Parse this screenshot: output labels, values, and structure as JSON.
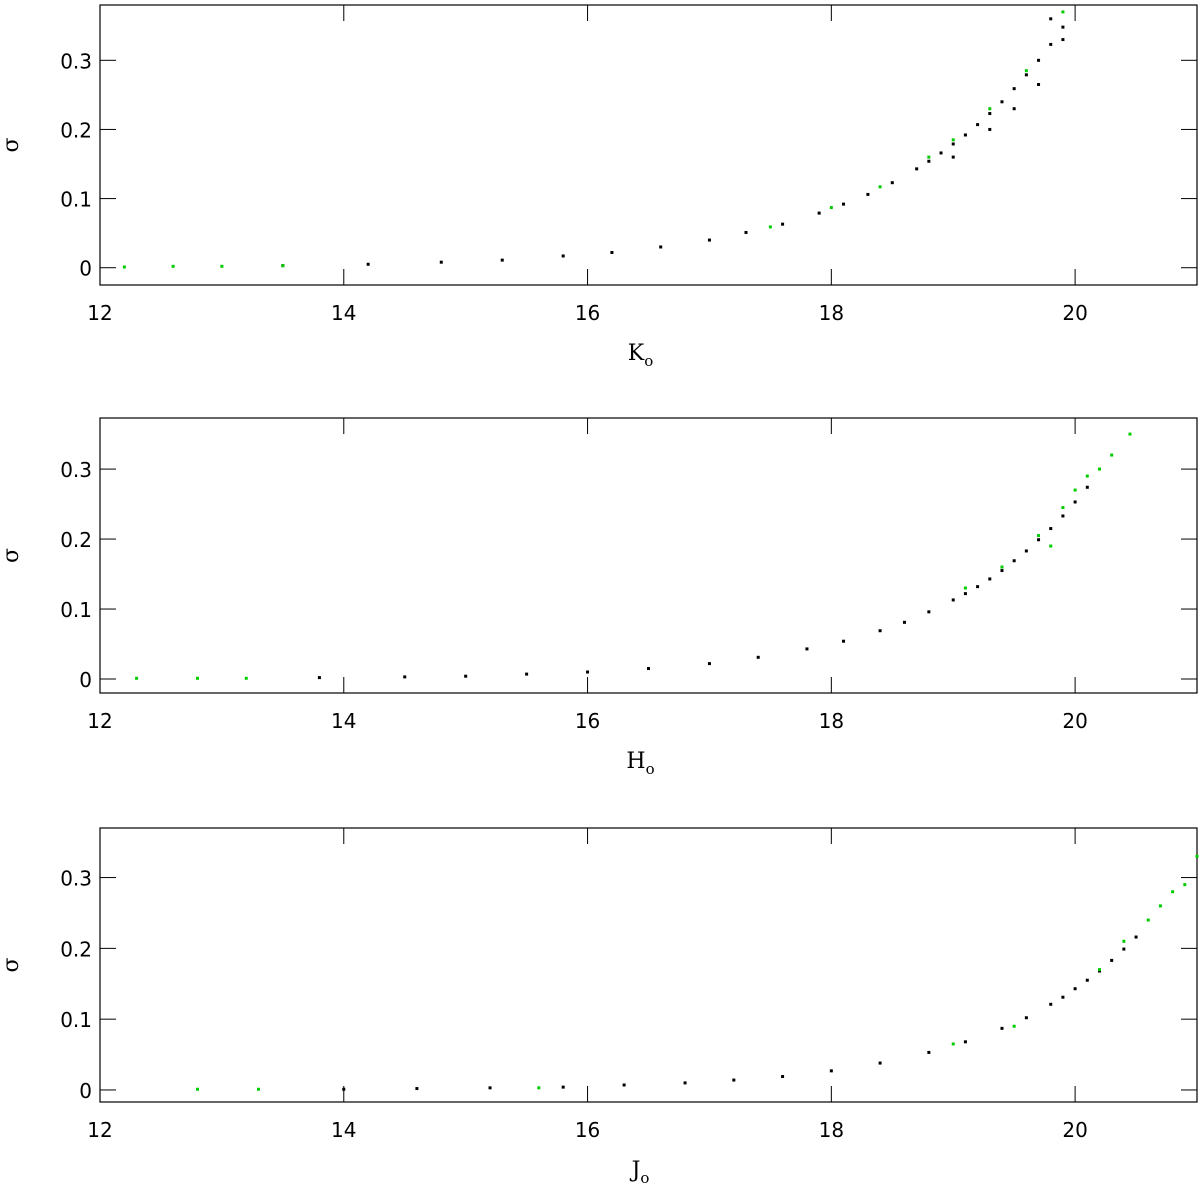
{
  "chart_data": [
    {
      "type": "scatter",
      "xlabel": "K",
      "xlabel_sub": "o",
      "ylabel": "σ",
      "xlim": [
        12,
        21
      ],
      "ylim": [
        -0.025,
        0.38
      ],
      "xticks": [
        12,
        14,
        16,
        18,
        20
      ],
      "yticks": [
        0,
        0.1,
        0.2,
        0.3
      ],
      "series": [
        {
          "color": "#000000",
          "x": [
            13.5,
            14.2,
            14.8,
            15.3,
            15.8,
            16.2,
            16.6,
            17.0,
            17.3,
            17.6,
            17.9,
            18.1,
            18.3,
            18.5,
            18.7,
            18.8,
            18.9,
            19.0,
            19.1,
            19.2,
            19.3,
            19.4,
            19.5,
            19.6,
            19.7,
            19.8,
            19.9,
            19.0,
            19.3,
            19.5,
            19.7,
            19.8,
            19.9
          ],
          "values": [
            0.003,
            0.005,
            0.008,
            0.011,
            0.017,
            0.022,
            0.03,
            0.04,
            0.051,
            0.063,
            0.079,
            0.092,
            0.106,
            0.123,
            0.143,
            0.154,
            0.166,
            0.179,
            0.192,
            0.207,
            0.223,
            0.24,
            0.259,
            0.279,
            0.3,
            0.323,
            0.348,
            0.16,
            0.2,
            0.23,
            0.265,
            0.36,
            0.33
          ]
        },
        {
          "color": "#00cc00",
          "x": [
            12.2,
            12.6,
            13.0,
            13.5,
            17.5,
            18.0,
            18.4,
            18.8,
            19.0,
            19.3,
            19.6,
            19.9
          ],
          "values": [
            0.001,
            0.002,
            0.002,
            0.003,
            0.059,
            0.087,
            0.117,
            0.16,
            0.185,
            0.23,
            0.285,
            0.37
          ]
        }
      ]
    },
    {
      "type": "scatter",
      "xlabel": "H",
      "xlabel_sub": "o",
      "ylabel": "σ",
      "xlim": [
        12,
        21
      ],
      "ylim": [
        -0.02,
        0.373
      ],
      "xticks": [
        12,
        14,
        16,
        18,
        20
      ],
      "yticks": [
        0,
        0.1,
        0.2,
        0.3
      ],
      "series": [
        {
          "color": "#000000",
          "x": [
            13.8,
            14.5,
            15.0,
            15.5,
            16.0,
            16.5,
            17.0,
            17.4,
            17.8,
            18.1,
            18.4,
            18.6,
            18.8,
            19.0,
            19.1,
            19.2,
            19.3,
            19.4,
            19.5,
            19.6,
            19.7,
            19.8,
            19.9,
            20.0,
            20.1
          ],
          "values": [
            0.002,
            0.003,
            0.004,
            0.007,
            0.01,
            0.015,
            0.022,
            0.031,
            0.043,
            0.054,
            0.069,
            0.081,
            0.096,
            0.113,
            0.122,
            0.132,
            0.143,
            0.155,
            0.169,
            0.183,
            0.199,
            0.215,
            0.233,
            0.253,
            0.274
          ]
        },
        {
          "color": "#00cc00",
          "x": [
            12.3,
            12.8,
            13.2,
            19.1,
            19.4,
            19.7,
            19.8,
            19.9,
            20.0,
            20.1,
            20.2,
            20.3,
            20.45
          ],
          "values": [
            0.001,
            0.001,
            0.001,
            0.13,
            0.16,
            0.205,
            0.19,
            0.245,
            0.27,
            0.29,
            0.3,
            0.32,
            0.35
          ]
        }
      ]
    },
    {
      "type": "scatter",
      "xlabel": "J",
      "xlabel_sub": "o",
      "ylabel": "σ",
      "xlim": [
        12,
        21
      ],
      "ylim": [
        -0.017,
        0.37
      ],
      "xticks": [
        12,
        14,
        16,
        18,
        20
      ],
      "yticks": [
        0,
        0.1,
        0.2,
        0.3
      ],
      "series": [
        {
          "color": "#000000",
          "x": [
            14.0,
            14.6,
            15.2,
            15.8,
            16.3,
            16.8,
            17.2,
            17.6,
            18.0,
            18.4,
            18.8,
            19.1,
            19.4,
            19.6,
            19.8,
            19.9,
            20.0,
            20.1,
            20.2,
            20.3,
            20.4,
            20.5
          ],
          "values": [
            0.001,
            0.002,
            0.003,
            0.004,
            0.007,
            0.01,
            0.014,
            0.019,
            0.027,
            0.038,
            0.053,
            0.068,
            0.087,
            0.102,
            0.121,
            0.131,
            0.143,
            0.155,
            0.168,
            0.183,
            0.199,
            0.216
          ]
        },
        {
          "color": "#00cc00",
          "x": [
            12.8,
            13.3,
            15.6,
            19.0,
            19.5,
            20.2,
            20.4,
            20.6,
            20.7,
            20.8,
            20.9,
            21.0
          ],
          "values": [
            0.001,
            0.001,
            0.003,
            0.065,
            0.09,
            0.17,
            0.21,
            0.24,
            0.26,
            0.28,
            0.29,
            0.33
          ]
        }
      ]
    }
  ]
}
